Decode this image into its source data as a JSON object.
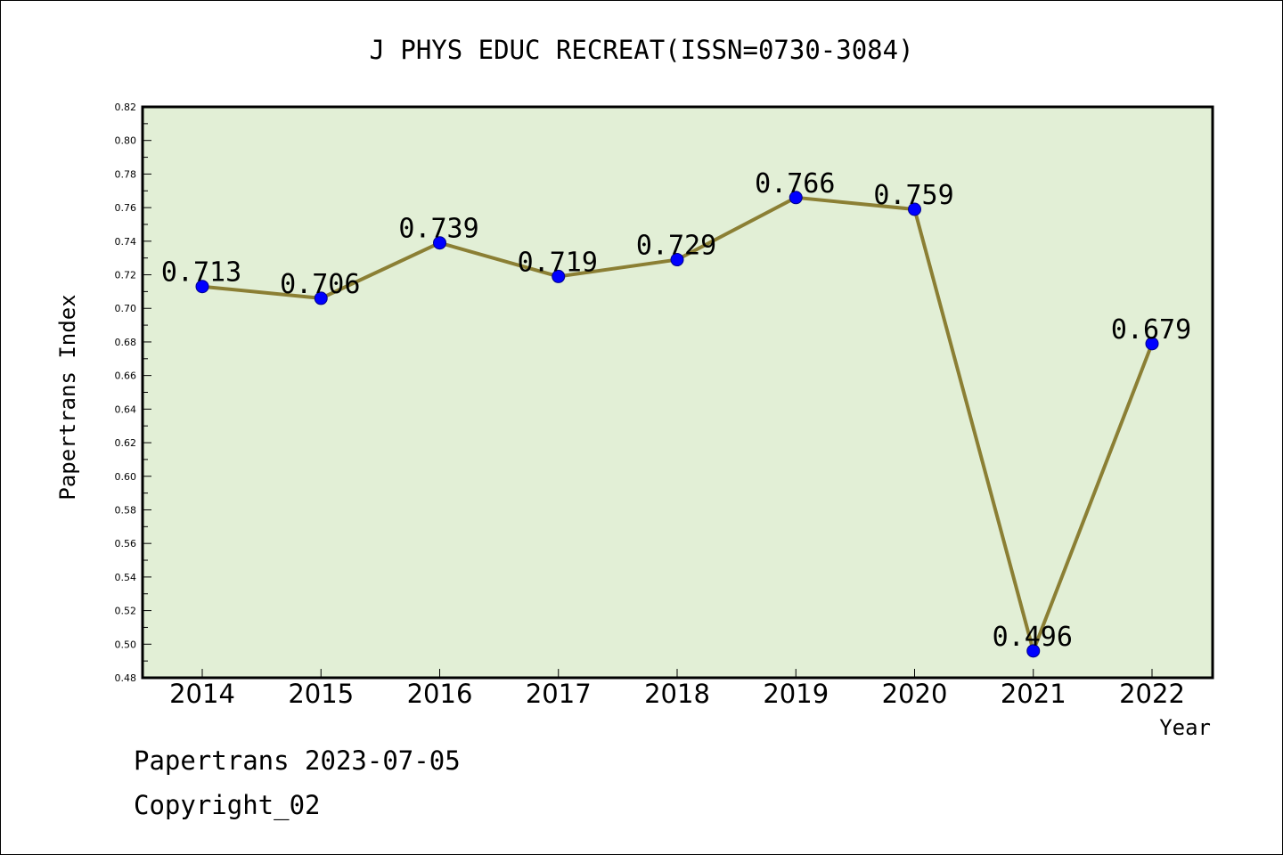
{
  "chart_data": {
    "type": "line",
    "title": "J PHYS EDUC RECREAT(ISSN=0730-3084)",
    "xlabel": "Year",
    "ylabel": "Papertrans Index",
    "categories": [
      "2014",
      "2015",
      "2016",
      "2017",
      "2018",
      "2019",
      "2020",
      "2021",
      "2022"
    ],
    "series": [
      {
        "values": [
          0.713,
          0.706,
          0.739,
          0.719,
          0.729,
          0.766,
          0.759,
          0.496,
          0.679
        ]
      }
    ],
    "data_labels": [
      "0.713",
      "0.706",
      "0.739",
      "0.719",
      "0.729",
      "0.766",
      "0.759",
      "0.496",
      "0.679"
    ],
    "ylim": [
      0.48,
      0.82
    ],
    "yticks": [
      "0.48",
      "0.50",
      "0.52",
      "0.54",
      "0.56",
      "0.58",
      "0.60",
      "0.62",
      "0.64",
      "0.66",
      "0.68",
      "0.70",
      "0.72",
      "0.74",
      "0.76",
      "0.78",
      "0.80",
      "0.82"
    ],
    "grid": false,
    "legend": "none",
    "colors": {
      "plot_background": "#e2efd6",
      "line": "#8b7f34",
      "marker": "#0000ff"
    }
  },
  "footer": {
    "line1": "Papertrans 2023-07-05",
    "line2": "Copyright_02"
  }
}
